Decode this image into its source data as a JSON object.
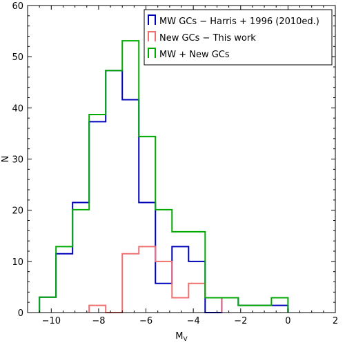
{
  "chart_data": {
    "type": "histogram",
    "xlabel": "M",
    "xlabel_sub": "V",
    "ylabel": "N",
    "xlim": [
      -11,
      2
    ],
    "ylim": [
      0,
      60
    ],
    "xticks": [
      -10,
      -8,
      -6,
      -4,
      -2,
      0,
      2
    ],
    "xtick_labels": [
      "−10",
      "−8",
      "−6",
      "−4",
      "−2",
      "0",
      "2"
    ],
    "yticks": [
      0,
      10,
      20,
      30,
      40,
      50,
      60
    ],
    "ytick_labels": [
      "0",
      "10",
      "20",
      "30",
      "40",
      "50",
      "60"
    ],
    "grid": false,
    "legend_position": "top-right",
    "series": [
      {
        "name": "MW GCs − Harris + 1996 (2010ed.)",
        "color": "#0000bb",
        "bins": [
          {
            "x0": -10.5,
            "x1": -9.8,
            "y": 3
          },
          {
            "x0": -9.8,
            "x1": -9.1,
            "y": 11.5
          },
          {
            "x0": -9.1,
            "x1": -8.4,
            "y": 21.5
          },
          {
            "x0": -8.4,
            "x1": -7.7,
            "y": 37.3
          },
          {
            "x0": -7.7,
            "x1": -7.0,
            "y": 47.3
          },
          {
            "x0": -7.0,
            "x1": -6.3,
            "y": 41.6
          },
          {
            "x0": -6.3,
            "x1": -5.6,
            "y": 21.5
          },
          {
            "x0": -5.6,
            "x1": -4.9,
            "y": 5.7
          },
          {
            "x0": -4.9,
            "x1": -4.2,
            "y": 12.9
          },
          {
            "x0": -4.2,
            "x1": -3.5,
            "y": 10
          },
          {
            "x0": -3.5,
            "x1": -2.8,
            "y": 0
          },
          {
            "x0": -2.8,
            "x1": -2.1,
            "y": 2.9
          },
          {
            "x0": -2.1,
            "x1": -1.4,
            "y": 1.4
          },
          {
            "x0": -1.4,
            "x1": -0.7,
            "y": 1.4
          },
          {
            "x0": -0.7,
            "x1": 0.0,
            "y": 1.4
          }
        ]
      },
      {
        "name": "New GCs  −  This work",
        "color": "#f07070",
        "bins": [
          {
            "x0": -8.4,
            "x1": -7.7,
            "y": 1.4
          },
          {
            "x0": -7.7,
            "x1": -7.0,
            "y": 0
          },
          {
            "x0": -7.0,
            "x1": -6.3,
            "y": 11.5
          },
          {
            "x0": -6.3,
            "x1": -5.6,
            "y": 12.9
          },
          {
            "x0": -5.6,
            "x1": -4.9,
            "y": 10
          },
          {
            "x0": -4.9,
            "x1": -4.2,
            "y": 2.9
          },
          {
            "x0": -4.2,
            "x1": -3.5,
            "y": 5.7
          },
          {
            "x0": -3.5,
            "x1": -2.8,
            "y": 2.9
          }
        ]
      },
      {
        "name": "MW + New GCs",
        "color": "#00aa00",
        "bins": [
          {
            "x0": -10.5,
            "x1": -9.8,
            "y": 3
          },
          {
            "x0": -9.8,
            "x1": -9.1,
            "y": 12.9
          },
          {
            "x0": -9.1,
            "x1": -8.4,
            "y": 20.1
          },
          {
            "x0": -8.4,
            "x1": -7.7,
            "y": 38.7
          },
          {
            "x0": -7.7,
            "x1": -7.0,
            "y": 47.3
          },
          {
            "x0": -7.0,
            "x1": -6.3,
            "y": 53.1
          },
          {
            "x0": -6.3,
            "x1": -5.6,
            "y": 34.4
          },
          {
            "x0": -5.6,
            "x1": -4.9,
            "y": 20.1
          },
          {
            "x0": -4.9,
            "x1": -4.2,
            "y": 15.8
          },
          {
            "x0": -4.2,
            "x1": -3.5,
            "y": 15.8
          },
          {
            "x0": -3.5,
            "x1": -2.8,
            "y": 2.9
          },
          {
            "x0": -2.8,
            "x1": -2.1,
            "y": 2.9
          },
          {
            "x0": -2.1,
            "x1": -1.4,
            "y": 1.4
          },
          {
            "x0": -1.4,
            "x1": -0.7,
            "y": 1.4
          },
          {
            "x0": -0.7,
            "x1": 0.0,
            "y": 2.9
          }
        ]
      }
    ]
  }
}
